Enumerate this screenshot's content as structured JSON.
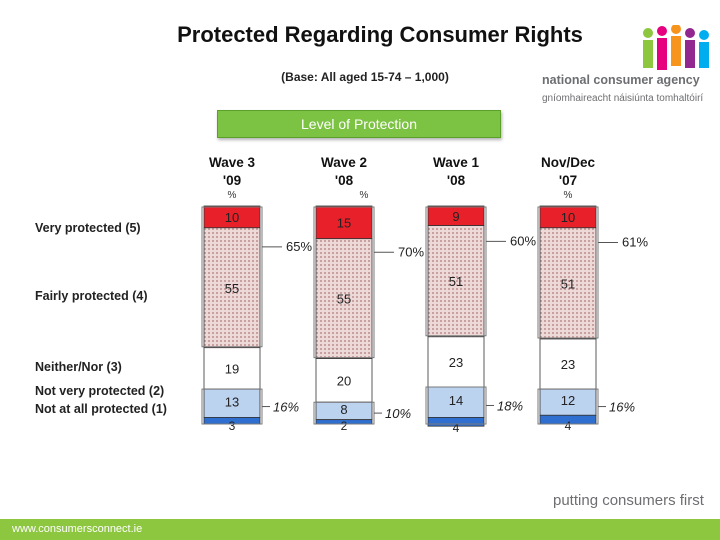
{
  "title": "Protected Regarding Consumer Rights",
  "subtitle": "(Base: All aged 15-74 – 1,000)",
  "banner": "Level of Protection",
  "logo": {
    "line1": "national consumer agency",
    "line2": "gníomhaireacht náisiúnta tomhaltóirí"
  },
  "tagline": "putting consumers first",
  "footer_url": "www.consumersconnect.ie",
  "colors": {
    "very": "#e8202a",
    "fairly": "#d7b3b3",
    "neither": "#ffffff",
    "notvery": "#bcd3f0",
    "notatall": "#2f6fd0",
    "banner": "#7cc243",
    "footer": "#8dc63f"
  },
  "chart_data": {
    "type": "bar",
    "stacked": true,
    "categories": [
      {
        "line1": "Wave 3",
        "line2": "'09",
        "pct": "%"
      },
      {
        "line1": "Wave 2",
        "line2": "'08",
        "pct": "%"
      },
      {
        "line1": "Wave 1",
        "line2": "'08",
        "pct": ""
      },
      {
        "line1": "Nov/Dec",
        "line2": "'07",
        "pct": "%"
      }
    ],
    "series": [
      {
        "name": "Very protected (5)",
        "values": [
          10,
          15,
          9,
          10
        ]
      },
      {
        "name": "Fairly protected (4)",
        "values": [
          55,
          55,
          51,
          51
        ]
      },
      {
        "name": "Neither/Nor (3)",
        "values": [
          19,
          20,
          23,
          23
        ]
      },
      {
        "name": "Not very protected (2)",
        "values": [
          13,
          8,
          14,
          12
        ]
      },
      {
        "name": "Not at all protected (1)",
        "values": [
          3,
          2,
          4,
          4
        ]
      }
    ],
    "row_labels": [
      "Very protected (5)",
      "Fairly protected (4)",
      "Neither/Nor (3)",
      "Not very protected (2)",
      "Not at all protected (1)"
    ],
    "top_box": [
      "65%",
      "70%",
      "60%",
      "61%"
    ],
    "bottom_box": [
      "16%",
      "10%",
      "18%",
      "16%"
    ]
  }
}
